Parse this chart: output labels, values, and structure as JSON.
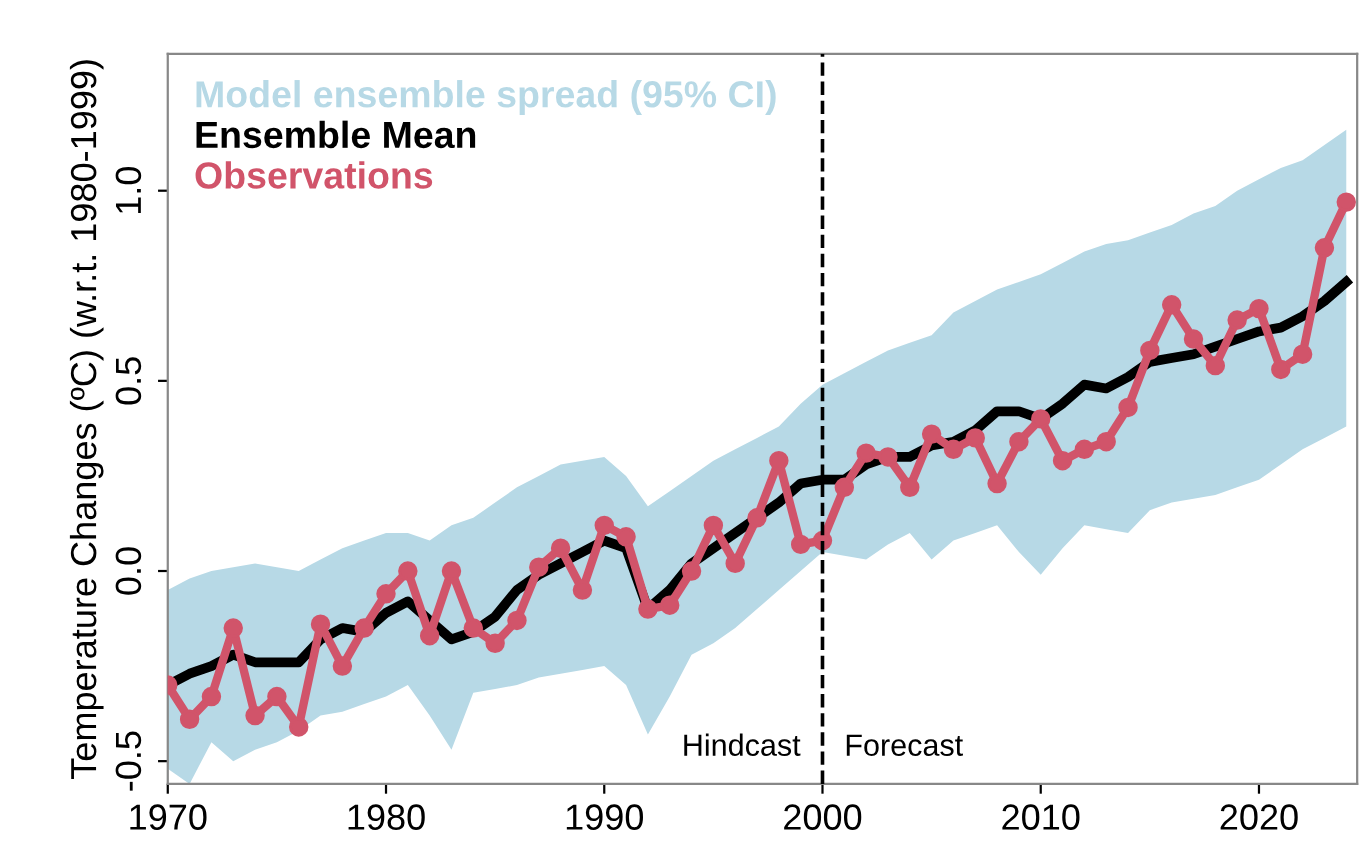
{
  "chart_data": {
    "type": "line",
    "ylabel": "Temperature Changes (ºC) (w.r.t. 1980-1999)",
    "xlim": [
      1970,
      2024.5
    ],
    "ylim": [
      -0.56,
      1.36
    ],
    "xticks": [
      1970,
      1980,
      1990,
      2000,
      2010,
      2020
    ],
    "yticks": [
      -0.5,
      {
        "value": 0.0,
        "label": "0.0"
      },
      0.5,
      {
        "value": 1.0,
        "label": "1.0"
      }
    ],
    "legend": "top left",
    "grid": false,
    "ref_lines": [
      {
        "axis": "x",
        "value": 2000,
        "color": "#000000",
        "line_style": "dashed"
      }
    ],
    "annotations": [
      "Hindcast",
      "Forecast"
    ],
    "series": [
      {
        "name": "Model ensemble spread (95% CI)",
        "type": "area",
        "color": "#b7d9e6",
        "x": [
          1970,
          1971,
          1972,
          1973,
          1974,
          1975,
          1976,
          1977,
          1978,
          1979,
          1980,
          1981,
          1982,
          1983,
          1984,
          1985,
          1986,
          1987,
          1988,
          1989,
          1990,
          1991,
          1992,
          1993,
          1994,
          1995,
          1996,
          1997,
          1998,
          1999,
          2000,
          2001,
          2002,
          2003,
          2004,
          2005,
          2006,
          2007,
          2008,
          2009,
          2010,
          2011,
          2012,
          2013,
          2014,
          2015,
          2016,
          2017,
          2018,
          2019,
          2020,
          2021,
          2022,
          2023,
          2024
        ],
        "values": [
          null,
          null,
          null,
          null,
          null,
          null,
          null,
          null,
          null,
          null,
          null,
          null,
          null,
          null,
          null,
          null,
          null,
          null,
          null,
          null,
          null,
          null,
          null,
          null,
          null,
          null,
          null,
          null,
          null,
          null,
          null,
          null,
          null,
          null,
          null,
          null,
          null,
          null,
          null,
          null,
          null,
          null,
          null,
          null,
          null,
          null,
          null,
          null,
          null,
          null,
          null,
          null,
          null,
          null,
          null
        ],
        "lower": [
          -0.52,
          -0.56,
          -0.45,
          -0.5,
          -0.47,
          -0.45,
          -0.42,
          -0.38,
          -0.37,
          -0.35,
          -0.33,
          -0.3,
          -0.38,
          -0.47,
          -0.32,
          -0.31,
          -0.3,
          -0.28,
          -0.27,
          -0.26,
          -0.25,
          -0.3,
          -0.43,
          -0.33,
          -0.22,
          -0.19,
          -0.15,
          -0.1,
          -0.05,
          0.0,
          0.05,
          0.04,
          0.03,
          0.07,
          0.1,
          0.03,
          0.08,
          0.1,
          0.12,
          0.05,
          -0.01,
          0.06,
          0.12,
          0.11,
          0.1,
          0.16,
          0.18,
          0.19,
          0.2,
          0.22,
          0.24,
          0.28,
          0.32,
          0.35,
          0.38
        ],
        "upper": [
          -0.05,
          -0.02,
          0.0,
          0.01,
          0.02,
          0.01,
          0.0,
          0.03,
          0.06,
          0.08,
          0.1,
          0.1,
          0.08,
          0.12,
          0.14,
          0.18,
          0.22,
          0.25,
          0.28,
          0.29,
          0.3,
          0.25,
          0.17,
          0.21,
          0.25,
          0.29,
          0.32,
          0.35,
          0.38,
          0.44,
          0.49,
          0.52,
          0.55,
          0.58,
          0.6,
          0.62,
          0.68,
          0.71,
          0.74,
          0.76,
          0.78,
          0.81,
          0.84,
          0.86,
          0.87,
          0.89,
          0.91,
          0.94,
          0.96,
          1.0,
          1.03,
          1.06,
          1.08,
          1.12,
          1.16
        ]
      },
      {
        "name": "Ensemble Mean",
        "color": "#000000",
        "marker": "none",
        "x": [
          1970,
          1971,
          1972,
          1973,
          1974,
          1975,
          1976,
          1977,
          1978,
          1979,
          1980,
          1981,
          1982,
          1983,
          1984,
          1985,
          1986,
          1987,
          1988,
          1989,
          1990,
          1991,
          1992,
          1993,
          1994,
          1995,
          1996,
          1997,
          1998,
          1999,
          2000,
          2001,
          2002,
          2003,
          2004,
          2005,
          2006,
          2007,
          2008,
          2009,
          2010,
          2011,
          2012,
          2013,
          2014,
          2015,
          2016,
          2017,
          2018,
          2019,
          2020,
          2021,
          2022,
          2023,
          2024
        ],
        "values": [
          -0.3,
          -0.27,
          -0.25,
          -0.22,
          -0.24,
          -0.24,
          -0.24,
          -0.18,
          -0.15,
          -0.16,
          -0.11,
          -0.08,
          -0.13,
          -0.18,
          -0.16,
          -0.12,
          -0.05,
          -0.01,
          0.02,
          0.05,
          0.08,
          0.06,
          -0.1,
          -0.05,
          0.02,
          0.06,
          0.1,
          0.14,
          0.18,
          0.23,
          0.24,
          0.24,
          0.28,
          0.3,
          0.3,
          0.33,
          0.34,
          0.37,
          0.42,
          0.42,
          0.4,
          0.44,
          0.49,
          0.48,
          0.51,
          0.55,
          0.56,
          0.57,
          0.59,
          0.61,
          0.63,
          0.64,
          0.67,
          0.71,
          0.76
        ]
      },
      {
        "name": "Observations",
        "color": "#d1546a",
        "marker": "circle",
        "x": [
          1970,
          1971,
          1972,
          1973,
          1974,
          1975,
          1976,
          1977,
          1978,
          1979,
          1980,
          1981,
          1982,
          1983,
          1984,
          1985,
          1986,
          1987,
          1988,
          1989,
          1990,
          1991,
          1992,
          1993,
          1994,
          1995,
          1996,
          1997,
          1998,
          1999,
          2000,
          2001,
          2002,
          2003,
          2004,
          2005,
          2006,
          2007,
          2008,
          2009,
          2010,
          2011,
          2012,
          2013,
          2014,
          2015,
          2016,
          2017,
          2018,
          2019,
          2020,
          2021,
          2022,
          2023,
          2024
        ],
        "values": [
          -0.3,
          -0.39,
          -0.33,
          -0.15,
          -0.38,
          -0.33,
          -0.41,
          -0.14,
          -0.25,
          -0.15,
          -0.06,
          0.0,
          -0.17,
          0.0,
          -0.15,
          -0.19,
          -0.13,
          0.01,
          0.06,
          -0.05,
          0.12,
          0.09,
          -0.1,
          -0.09,
          0.0,
          0.12,
          0.02,
          0.14,
          0.29,
          0.07,
          0.08,
          0.22,
          0.31,
          0.3,
          0.22,
          0.36,
          0.32,
          0.35,
          0.23,
          0.34,
          0.4,
          0.29,
          0.32,
          0.34,
          0.43,
          0.58,
          0.7,
          0.61,
          0.54,
          0.66,
          0.69,
          0.53,
          0.57,
          0.85,
          0.97
        ]
      }
    ]
  }
}
